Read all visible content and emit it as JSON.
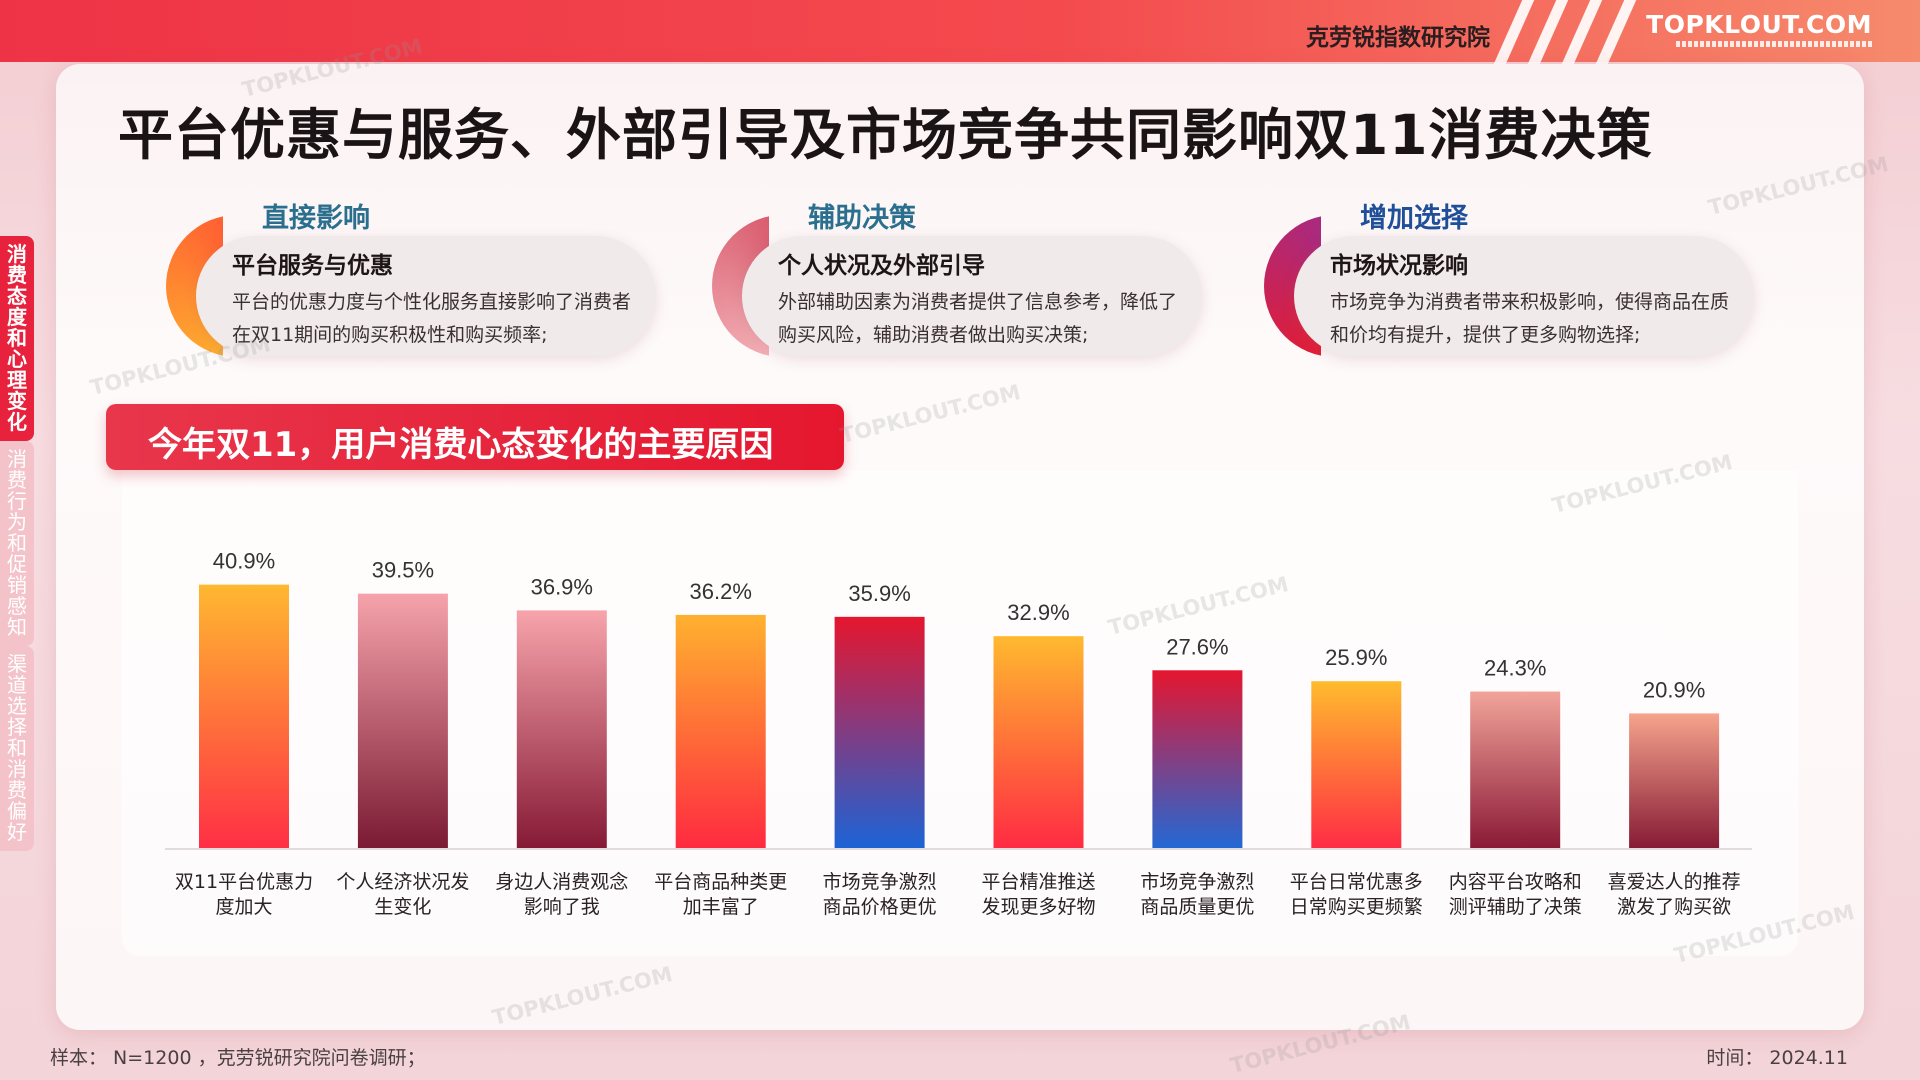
{
  "header": {
    "org_name": "克劳锐指数研究院",
    "logo_text": "TOPKLOUT.COM",
    "watermark": "TOPKLOUT.COM"
  },
  "title": "平台优惠与服务、外部引导及市场竞争共同影响双11消费决策",
  "sidebar": {
    "items": [
      {
        "label": "消费态度和心理变化",
        "active": true
      },
      {
        "label": "消费行为和促销感知",
        "active": false
      },
      {
        "label": "渠道选择和消费偏好",
        "active": false
      }
    ]
  },
  "factors": [
    {
      "label": "直接影响",
      "heading": "平台服务与优惠",
      "desc": "平台的优惠力度与个性化服务直接影响了消费者在双11期间的购买积极性和购买频率;",
      "label_color": "#2b6f8f"
    },
    {
      "label": "辅助决策",
      "heading": "个人状况及外部引导",
      "desc": "外部辅助因素为消费者提供了信息参考，降低了购买风险，辅助消费者做出购买决策;",
      "label_color": "#2b6f8f"
    },
    {
      "label": "增加选择",
      "heading": "市场状况影响",
      "desc": "市场竞争为消费者带来积极影响，使得商品在质和价均有提升，提供了更多购物选择;",
      "label_color": "#1f4f99"
    }
  ],
  "chart_title": "今年双11，用户消费心态变化的主要原因",
  "chart_data": {
    "type": "bar",
    "title": "今年双11，用户消费心态变化的主要原因",
    "categories": [
      "双11平台优惠力度加大",
      "个人经济状况发生变化",
      "身边人消费观念影响了我",
      "平台商品种类更加丰富了",
      "市场竞争激烈商品价格更优",
      "平台精准推送发现更多好物",
      "市场竞争激烈商品质量更优",
      "平台日常优惠多日常购买更频繁",
      "内容平台攻略和测评辅助了决策",
      "喜爱达人的推荐激发了购买欲"
    ],
    "category_lines": [
      [
        "双11平台优惠力",
        "度加大"
      ],
      [
        "个人经济状况发",
        "生变化"
      ],
      [
        "身边人消费观念",
        "影响了我"
      ],
      [
        "平台商品种类更",
        "加丰富了"
      ],
      [
        "市场竞争激烈",
        "商品价格更优"
      ],
      [
        "平台精准推送",
        "发现更多好物"
      ],
      [
        "市场竞争激烈",
        "商品质量更优"
      ],
      [
        "平台日常优惠多",
        "日常购买更频繁"
      ],
      [
        "内容平台攻略和",
        "测评辅助了决策"
      ],
      [
        "喜爱达人的推荐",
        "激发了购买欲"
      ]
    ],
    "values": [
      40.9,
      39.5,
      36.9,
      36.2,
      35.9,
      32.9,
      27.6,
      25.9,
      24.3,
      20.9
    ],
    "value_labels": [
      "40.9%",
      "39.5%",
      "36.9%",
      "36.2%",
      "35.9%",
      "32.9%",
      "27.6%",
      "25.9%",
      "24.3%",
      "20.9%"
    ],
    "unit": "%",
    "ylim": [
      0,
      41
    ],
    "grid": false,
    "bar_gradients": [
      [
        "#ffb830",
        "#ff2f45"
      ],
      [
        "#f6a3ab",
        "#7a1a33"
      ],
      [
        "#f7a4ab",
        "#861a36"
      ],
      [
        "#ffb12f",
        "#ff2a40"
      ],
      [
        "#e6162e",
        "#1c63d6"
      ],
      [
        "#ffb92f",
        "#ff2b43"
      ],
      [
        "#e5162f",
        "#2368d4"
      ],
      [
        "#ffbb2e",
        "#ff2c45"
      ],
      [
        "#f2a49a",
        "#8a1a36"
      ],
      [
        "#f6a48d",
        "#861b35"
      ]
    ]
  },
  "footer": {
    "sample": "样本： N=1200 ，克劳锐研究院问卷调研；",
    "date": "时间： 2024.11"
  }
}
